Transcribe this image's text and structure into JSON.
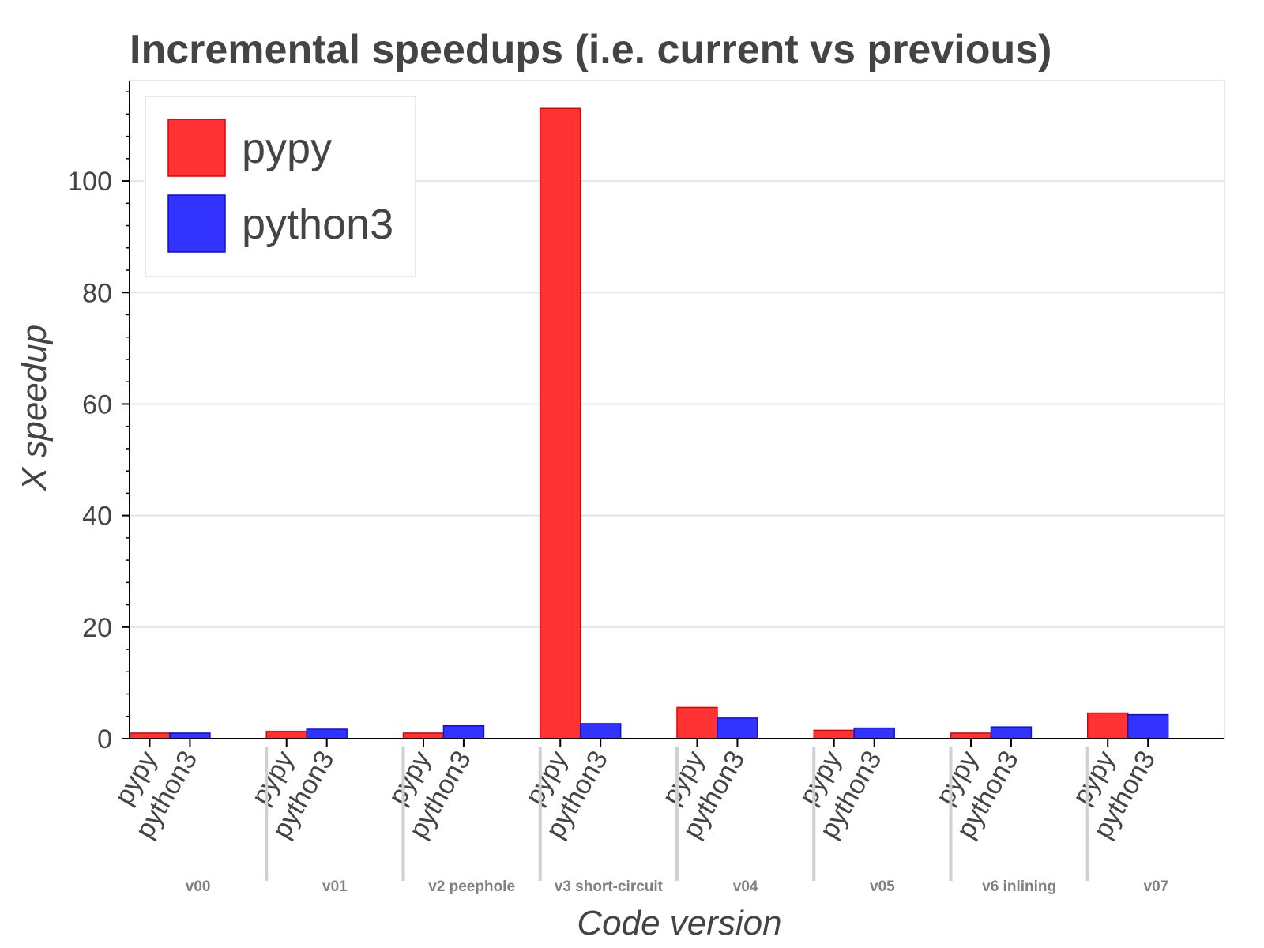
{
  "chart_data": {
    "type": "bar",
    "title": "Incremental speedups (i.e. current vs previous)",
    "xlabel": "Code version",
    "ylabel": "X speedup",
    "ylim": [
      0,
      118
    ],
    "yticks": [
      0,
      20,
      40,
      60,
      80,
      100
    ],
    "grid": true,
    "legend_position": "top-left",
    "categories": [
      "v00",
      "v01",
      "v2 peephole",
      "v3 short-circuit",
      "v04",
      "v05",
      "v6 inlining",
      "v07"
    ],
    "subcategories": [
      "pypy",
      "python3"
    ],
    "series": [
      {
        "name": "pypy",
        "color": "#ff3333",
        "values": [
          1.0,
          1.3,
          1.0,
          113.0,
          5.6,
          1.5,
          1.0,
          4.6
        ]
      },
      {
        "name": "python3",
        "color": "#3333ff",
        "values": [
          1.0,
          1.7,
          2.3,
          2.7,
          3.7,
          1.9,
          2.1,
          4.3
        ]
      }
    ]
  }
}
